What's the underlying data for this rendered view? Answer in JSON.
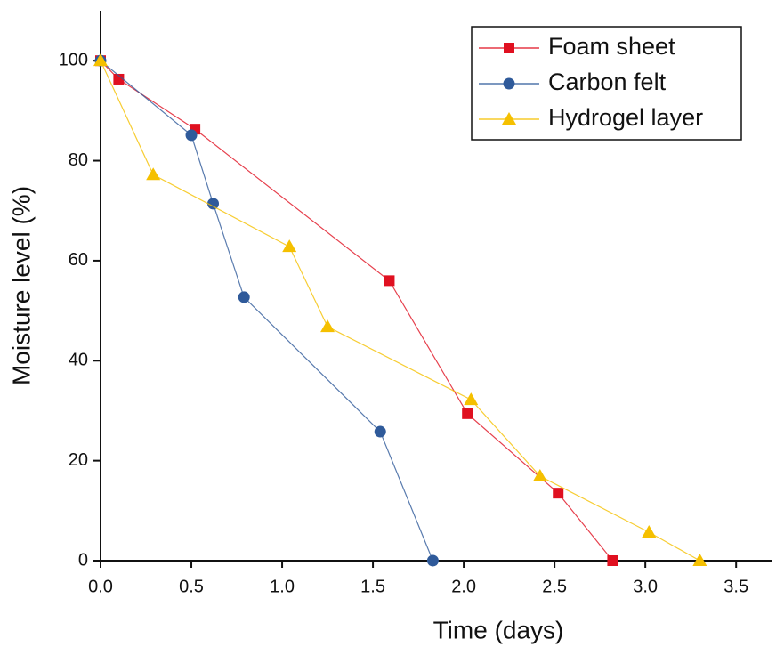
{
  "chart_data": {
    "type": "line",
    "xlabel": "Time (days)",
    "ylabel": "Moisture level (%)",
    "xlim": [
      0,
      3.7
    ],
    "ylim": [
      0,
      110
    ],
    "xticks": [
      {
        "value": 0,
        "label": "0.0"
      },
      0.5,
      {
        "value": 1,
        "label": "1.0"
      },
      1.5,
      {
        "value": 2,
        "label": "2.0"
      },
      2.5,
      {
        "value": 3,
        "label": "3.0"
      },
      3.5
    ],
    "yticks": [
      0,
      20,
      40,
      60,
      80,
      100
    ],
    "legend": "upper right",
    "series": [
      {
        "name": "Foam sheet",
        "color": "#e01020",
        "marker": "square",
        "x": [
          0,
          0.1,
          0.52,
          1.59,
          2.02,
          2.52,
          2.82
        ],
        "values": [
          100,
          96.3,
          86.3,
          56.0,
          29.4,
          13.5,
          0
        ]
      },
      {
        "name": "Carbon felt",
        "color": "#2f5a9a",
        "marker": "circle",
        "x": [
          0,
          0.5,
          0.62,
          0.79,
          1.54,
          1.83
        ],
        "values": [
          100,
          85.1,
          71.4,
          52.7,
          25.8,
          0
        ]
      },
      {
        "name": "Hydrogel layer",
        "color": "#f5c000",
        "marker": "triangle",
        "x": [
          0,
          0.29,
          1.04,
          1.25,
          2.04,
          2.42,
          3.02,
          3.3
        ],
        "values": [
          100,
          77.2,
          62.8,
          46.8,
          32.2,
          16.9,
          5.7,
          0
        ]
      }
    ]
  }
}
